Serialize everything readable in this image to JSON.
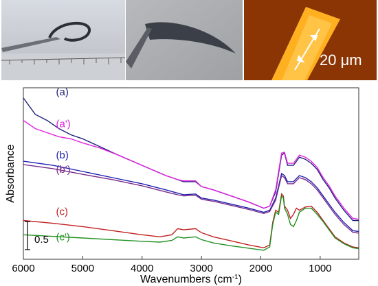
{
  "photos": [
    {
      "id": "ruler-photo",
      "description_hidden": true
    },
    {
      "id": "bent-film-photo"
    },
    {
      "id": "fluorescence-photo",
      "scalebar_label": "20 μm"
    }
  ],
  "chart_data": {
    "type": "line",
    "xlabel": "Wavenumbers (cm",
    "xlabel_sup": "-1",
    "xlabel_close": ")",
    "ylabel": "Absorbance",
    "xlim": [
      6000,
      350
    ],
    "xreversed": true,
    "ylim": [
      0,
      4.2
    ],
    "x_ticks": [
      6000,
      5000,
      4000,
      3000,
      2000,
      1000
    ],
    "x_tick_labels": [
      "6000",
      "5000",
      "4000",
      "3000",
      "2000",
      "1000"
    ],
    "scale_bar": {
      "label": "0.5",
      "value": 0.5
    },
    "grid": false,
    "series": [
      {
        "name": "(a)",
        "color": "#1f1f7a",
        "x": [
          6000,
          5800,
          5600,
          5400,
          5200,
          5000,
          4700,
          4400,
          4000,
          3600,
          3400,
          3300,
          3100,
          3000,
          2800,
          2500,
          2200,
          1950,
          1850,
          1750,
          1700,
          1650,
          1600,
          1550,
          1450,
          1350,
          1250,
          1150,
          1050,
          950,
          850,
          750,
          600,
          450,
          350
        ],
        "y": [
          3.95,
          3.55,
          3.4,
          3.2,
          3.05,
          2.95,
          2.75,
          2.55,
          2.3,
          2.05,
          1.95,
          1.9,
          1.9,
          1.78,
          1.7,
          1.55,
          1.4,
          1.25,
          1.3,
          1.65,
          2.1,
          2.55,
          2.6,
          2.3,
          2.3,
          2.5,
          2.45,
          2.35,
          2.2,
          1.95,
          1.75,
          1.5,
          1.2,
          0.95,
          0.95
        ]
      },
      {
        "name": "(a')",
        "color": "#e020e0",
        "x": [
          6000,
          5800,
          5600,
          5400,
          5200,
          5000,
          4700,
          4400,
          4000,
          3600,
          3400,
          3300,
          3100,
          3000,
          2800,
          2500,
          2200,
          1950,
          1850,
          1750,
          1700,
          1650,
          1600,
          1550,
          1450,
          1350,
          1250,
          1150,
          1050,
          950,
          850,
          750,
          600,
          450,
          350
        ],
        "y": [
          3.4,
          3.2,
          3.1,
          3.0,
          2.95,
          2.85,
          2.72,
          2.55,
          2.3,
          2.05,
          1.95,
          1.92,
          1.92,
          1.78,
          1.7,
          1.55,
          1.4,
          1.25,
          1.3,
          1.7,
          2.15,
          2.6,
          2.62,
          2.35,
          2.35,
          2.55,
          2.5,
          2.4,
          2.25,
          2.0,
          1.8,
          1.55,
          1.25,
          1.0,
          0.98
        ]
      },
      {
        "name": "(b)",
        "color": "#2020b0",
        "x": [
          6000,
          5500,
          5000,
          4500,
          4000,
          3600,
          3400,
          3300,
          3100,
          3000,
          2800,
          2500,
          2200,
          1950,
          1850,
          1750,
          1700,
          1650,
          1600,
          1550,
          1450,
          1350,
          1250,
          1150,
          1050,
          950,
          850,
          750,
          600,
          450,
          350
        ],
        "y": [
          2.4,
          2.3,
          2.15,
          2.0,
          1.85,
          1.7,
          1.62,
          1.58,
          1.6,
          1.5,
          1.45,
          1.35,
          1.25,
          1.15,
          1.2,
          1.5,
          1.8,
          2.1,
          2.05,
          1.9,
          1.9,
          2.05,
          2.0,
          1.9,
          1.75,
          1.55,
          1.35,
          1.15,
          0.9,
          0.7,
          0.68
        ]
      },
      {
        "name": "(b')",
        "color": "#7a2a8a",
        "x": [
          6000,
          5500,
          5000,
          4500,
          4000,
          3600,
          3400,
          3300,
          3100,
          3000,
          2800,
          2500,
          2200,
          1950,
          1850,
          1750,
          1700,
          1650,
          1600,
          1550,
          1450,
          1350,
          1250,
          1150,
          1050,
          950,
          850,
          750,
          600,
          450,
          350
        ],
        "y": [
          2.32,
          2.22,
          2.08,
          1.95,
          1.8,
          1.65,
          1.58,
          1.55,
          1.57,
          1.47,
          1.42,
          1.32,
          1.22,
          1.12,
          1.17,
          1.45,
          1.75,
          2.05,
          2.0,
          1.85,
          1.85,
          2.0,
          1.95,
          1.85,
          1.7,
          1.5,
          1.3,
          1.1,
          0.85,
          0.66,
          0.64
        ]
      },
      {
        "name": "(c)",
        "color": "#c02020",
        "x": [
          6000,
          5500,
          5000,
          4500,
          4000,
          3700,
          3500,
          3400,
          3300,
          3100,
          3000,
          2800,
          2500,
          2200,
          1950,
          1850,
          1800,
          1750,
          1700,
          1650,
          1620,
          1600,
          1550,
          1500,
          1450,
          1400,
          1350,
          1250,
          1150,
          1050,
          950,
          850,
          750,
          600,
          450,
          350
        ],
        "y": [
          0.95,
          0.88,
          0.8,
          0.7,
          0.6,
          0.55,
          0.6,
          0.75,
          0.72,
          0.75,
          0.65,
          0.55,
          0.45,
          0.35,
          0.28,
          0.35,
          0.9,
          1.2,
          1.15,
          1.6,
          1.55,
          1.3,
          1.2,
          1.0,
          1.1,
          1.25,
          1.2,
          1.28,
          1.3,
          1.15,
          0.95,
          0.75,
          0.55,
          0.4,
          0.3,
          0.28
        ]
      },
      {
        "name": "(c')",
        "color": "#209020",
        "x": [
          6000,
          5500,
          5000,
          4500,
          4000,
          3700,
          3500,
          3400,
          3300,
          3100,
          3000,
          2800,
          2500,
          2200,
          1950,
          1850,
          1800,
          1750,
          1700,
          1650,
          1620,
          1600,
          1550,
          1500,
          1450,
          1400,
          1350,
          1250,
          1150,
          1050,
          950,
          850,
          750,
          600,
          450,
          350
        ],
        "y": [
          0.6,
          0.56,
          0.52,
          0.48,
          0.44,
          0.42,
          0.46,
          0.55,
          0.52,
          0.55,
          0.48,
          0.4,
          0.33,
          0.27,
          0.22,
          0.3,
          0.85,
          1.15,
          1.1,
          1.55,
          1.5,
          1.25,
          1.1,
          0.85,
          0.8,
          0.95,
          1.15,
          1.25,
          1.25,
          1.1,
          0.92,
          0.72,
          0.52,
          0.38,
          0.28,
          0.26
        ]
      }
    ]
  }
}
